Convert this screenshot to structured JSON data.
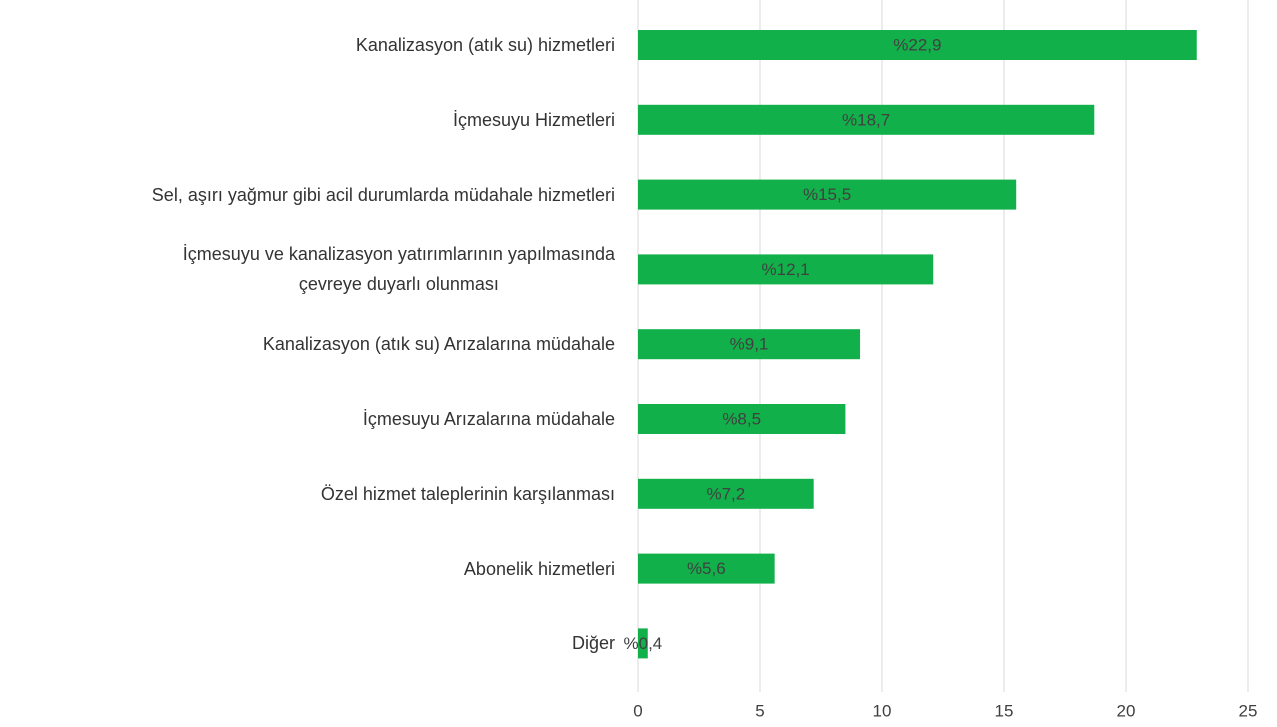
{
  "chart_data": {
    "type": "hbar",
    "categories": [
      "Kanalizasyon (atık su) hizmetleri",
      "İçmesuyu Hizmetleri",
      "Sel, aşırı yağmur gibi acil durumlarda müdahale hizmetleri",
      "İçmesuyu ve kanalizasyon yatırımlarının yapılmasında\nçevreye duyarlı olunması",
      "Kanalizasyon (atık su) Arızalarına müdahale",
      "İçmesuyu Arızalarına müdahale",
      "Özel hizmet taleplerinin karşılanması",
      "Abonelik hizmetleri",
      "Diğer"
    ],
    "values": [
      22.9,
      18.7,
      15.5,
      12.1,
      9.1,
      8.5,
      7.2,
      5.6,
      0.4
    ],
    "value_labels": [
      "%22,9",
      "%18,7",
      "%15,5",
      "%12,1",
      "%9,1",
      "%8,5",
      "%7,2",
      "%5,6",
      "%0,4"
    ],
    "color": "#12b04a",
    "xlim": [
      0,
      25
    ],
    "xticks": [
      0,
      5,
      10,
      15,
      20,
      25
    ],
    "grid": true
  }
}
